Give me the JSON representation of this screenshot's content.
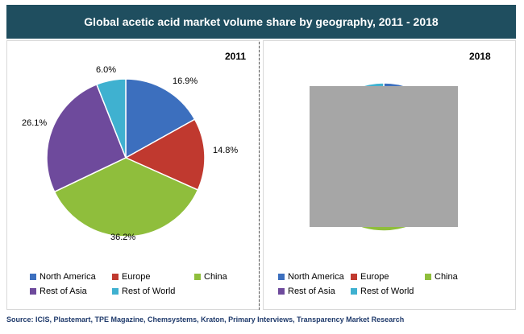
{
  "title": "Global acetic acid market volume share by geography, 2011 - 2018",
  "source": "Source: ICIS, Plastemart, TPE Magazine, Chemsystems, Kraton, Primary Interviews, Transparency Market Research",
  "colors": {
    "North America": "#3c6fbe",
    "Europe": "#c0392f",
    "China": "#8fbe3c",
    "Rest of Asia": "#6e4a9c",
    "Rest of World": "#3fb1d0",
    "title_bg": "#1f4e5f",
    "overlay": "#a6a6a6"
  },
  "legend": [
    "North America",
    "Europe",
    "China",
    "Rest of Asia",
    "Rest of World"
  ],
  "chart_data": [
    {
      "type": "pie",
      "title": "2011",
      "categories": [
        "North America",
        "Europe",
        "China",
        "Rest of Asia",
        "Rest of World"
      ],
      "values": [
        16.9,
        14.8,
        36.2,
        26.1,
        6.0
      ],
      "labels": [
        "16.9%",
        "14.8%",
        "36.2%",
        "26.1%",
        "6.0%"
      ],
      "legend_position": "bottom"
    },
    {
      "type": "pie",
      "title": "2018",
      "categories": [
        "North America",
        "Europe",
        "China",
        "Rest of Asia",
        "Rest of World"
      ],
      "values": [],
      "labels": [],
      "legend_position": "bottom",
      "obscured": true
    }
  ]
}
